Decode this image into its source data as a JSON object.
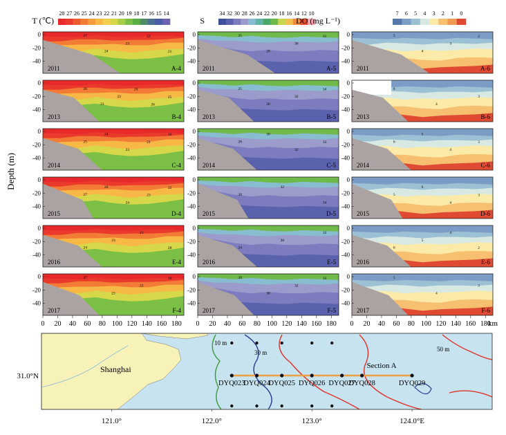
{
  "figure": {
    "depth_axis_label": "Depth (m)",
    "x_unit": "km",
    "map_bottom_ticks": [
      "121.0°",
      "122.0°",
      "123.0°",
      "124.0°E"
    ],
    "map_left_tick": "31.0°N"
  },
  "colorbars": [
    {
      "label": "T (℃)",
      "ticks": [
        "28",
        "27",
        "26",
        "25",
        "24",
        "23",
        "22",
        "21",
        "20",
        "19",
        "18",
        "17",
        "16",
        "15",
        "14"
      ],
      "colors": [
        "#e8282a",
        "#ea3a2c",
        "#ee5a30",
        "#f27c36",
        "#f59a3d",
        "#f7b846",
        "#f2cf4e",
        "#d6d84a",
        "#a8cd49",
        "#7cbf46",
        "#5cad44",
        "#4d8c66",
        "#4a6f92",
        "#4c5ba6",
        "#6c63b0"
      ]
    },
    {
      "label": "S",
      "ticks": [
        "34",
        "32",
        "30",
        "28",
        "26",
        "24",
        "22",
        "20",
        "18",
        "16",
        "14",
        "12",
        "10"
      ],
      "colors": [
        "#3e4f9e",
        "#5b62ad",
        "#7c7cbe",
        "#9b9ccc",
        "#88bdd0",
        "#62b4a8",
        "#48a86a",
        "#6fba4a",
        "#c8d34e",
        "#f2c04e",
        "#f08a3c",
        "#ec4e2e",
        "#f4a6b0"
      ]
    },
    {
      "label": "DO (mg L⁻¹)",
      "ticks": [
        "7",
        "6",
        "5",
        "4",
        "3",
        "2",
        "1",
        "0"
      ],
      "colors": [
        "#5577aa",
        "#7b9cc4",
        "#9cc0d4",
        "#d8e9e4",
        "#fbeaa8",
        "#f7c070",
        "#f09a54",
        "#e04a32"
      ]
    }
  ],
  "rows": [
    {
      "year": "2011",
      "panels": [
        "A-4",
        "A-5",
        "A-6"
      ],
      "t_labels": [
        "27",
        "24",
        "23",
        "22",
        "21"
      ],
      "s_labels": [
        "25",
        "28",
        "30",
        "31"
      ],
      "do_labels": [
        "5",
        "4",
        "3",
        "2"
      ]
    },
    {
      "year": "2013",
      "panels": [
        "B-4",
        "B-5",
        "B-6"
      ],
      "t_labels": [
        "26",
        "23",
        "22",
        "20",
        "26",
        "25"
      ],
      "s_labels": [
        "25",
        "30",
        "32",
        "34"
      ],
      "do_labels": [
        "6",
        "4",
        "3"
      ]
    },
    {
      "year": "2014",
      "panels": [
        "C-4",
        "C-5",
        "C-6"
      ],
      "t_labels": [
        "25",
        "24",
        "23",
        "21",
        "19"
      ],
      "s_labels": [
        "28",
        "30",
        "32",
        "33"
      ],
      "do_labels": [
        "6",
        "5",
        "4",
        "3"
      ]
    },
    {
      "year": "2015",
      "panels": [
        "D-4",
        "D-5",
        "D-6"
      ],
      "t_labels": [
        "27",
        "26",
        "24",
        "23",
        "22"
      ],
      "s_labels": [
        "28",
        "32",
        "34"
      ],
      "do_labels": [
        "5",
        "6",
        "4",
        "3"
      ]
    },
    {
      "year": "2016",
      "panels": [
        "E-4",
        "E-5",
        "E-6"
      ],
      "t_labels": [
        "24",
        "23",
        "21",
        "28"
      ],
      "s_labels": [
        "24",
        "30",
        "33"
      ],
      "do_labels": [
        "6",
        "5",
        "4",
        "2"
      ]
    },
    {
      "year": "2017",
      "panels": [
        "F-4",
        "F-5",
        "F-6"
      ],
      "t_labels": [
        "27",
        "23",
        "22",
        "19"
      ],
      "s_labels": [
        "28",
        "30",
        "32",
        "33"
      ],
      "do_labels": [
        "5",
        "4",
        "3"
      ]
    }
  ],
  "chart_data": [
    {
      "type": "heatmap",
      "description": "Vertical section contours along Section A for temperature, salinity and dissolved oxygen, six survey years",
      "xlabel": "km",
      "ylabel": "Depth (m)",
      "x_ticks": [
        0,
        20,
        40,
        60,
        80,
        100,
        120,
        140,
        160,
        180
      ],
      "y_ticks": [
        0,
        -20,
        -40
      ],
      "xlim": [
        0,
        190
      ],
      "ylim": [
        -55,
        0
      ],
      "years": [
        "2011",
        "2013",
        "2014",
        "2015",
        "2016",
        "2017"
      ],
      "variables": [
        "T (℃)",
        "S",
        "DO (mg L⁻¹)"
      ]
    },
    {
      "type": "map",
      "title": "Section A",
      "place_label": "Shanghai",
      "isobaths": [
        "10 m",
        "30 m",
        "50 m"
      ],
      "stations": [
        "DYQ023",
        "DYQ024",
        "DYQ025",
        "DYQ026",
        "DYQ027",
        "DYQ028",
        "DYQ029"
      ],
      "station_lon": [
        122.2,
        122.45,
        122.7,
        123.0,
        123.3,
        123.5,
        124.0
      ],
      "lat": 31.0,
      "lon_ticks": [
        "121.0°",
        "122.0°",
        "123.0°",
        "124.0°E"
      ],
      "lat_ticks": [
        "31.0°N"
      ]
    }
  ]
}
